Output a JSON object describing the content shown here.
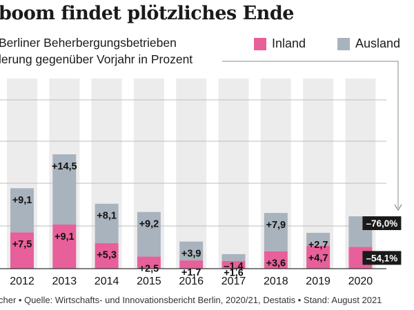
{
  "title": "boom findet plötzliches Ende",
  "subtitle_line1": "Berliner Beherbergungsbetrieben",
  "subtitle_line2": "lerung gegenüber Vorjahr in Prozent",
  "source": "cher • Quelle: Wirtschafts- und Innovationsbericht Berlin, 2020/21, Destatis • Stand: August 2021",
  "colors": {
    "inland": "#e8609a",
    "ausland": "#a9b3bd",
    "band": "#ececec",
    "grid": "#bdbdbd",
    "callout": "#1a1a1a"
  },
  "chart_data": {
    "type": "bar",
    "stacked": true,
    "categories": [
      "2012",
      "2013",
      "2014",
      "2015",
      "2016",
      "2017",
      "2018",
      "2019",
      "2020"
    ],
    "series": [
      {
        "name": "Inland",
        "values": [
          7.5,
          9.1,
          5.3,
          2.5,
          1.7,
          1.6,
          3.6,
          4.7,
          -54.1
        ],
        "labels": [
          "+7,5",
          "+9,1",
          "+5,3",
          "+2,5",
          "+1,7",
          "+1,6",
          "+3,6",
          "+4,7",
          "–54,1%"
        ]
      },
      {
        "name": "Ausland",
        "values": [
          9.1,
          14.5,
          8.1,
          9.2,
          3.9,
          -1.4,
          7.9,
          2.7,
          -76.0
        ],
        "labels": [
          "+9,1",
          "+14,5",
          "+8,1",
          "+9,2",
          "+3,9",
          "–1,4",
          "+7,9",
          "+2,7",
          "–76,0%"
        ]
      }
    ],
    "legend": [
      "Inland",
      "Ausland"
    ],
    "legend_position": "top-right",
    "grid": true
  }
}
